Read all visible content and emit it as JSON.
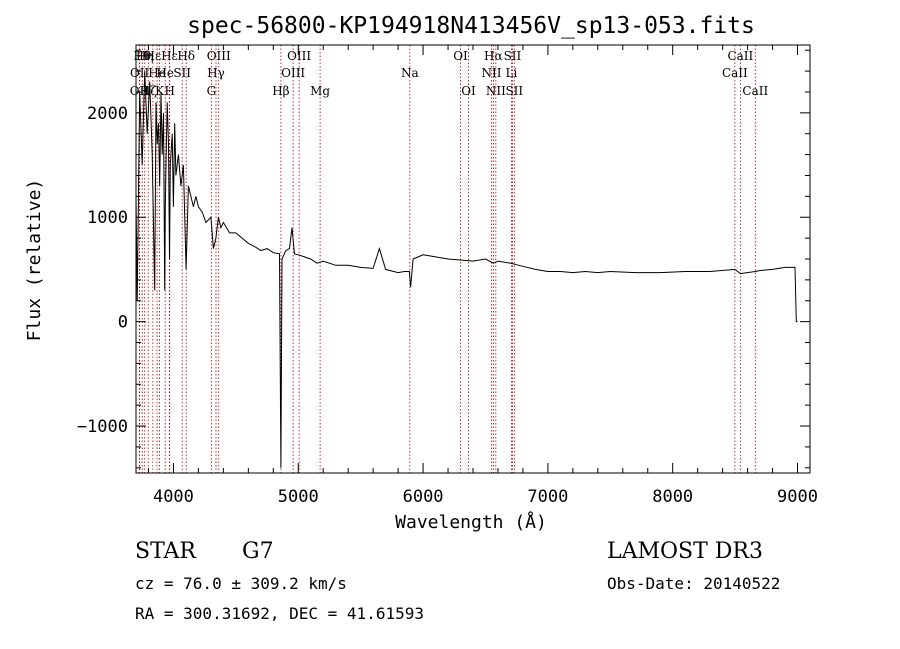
{
  "chart_data": {
    "type": "line",
    "title": "spec-56800-KP194918N413456V_sp13-053.fits",
    "xlabel": "Wavelength (Å)",
    "ylabel": "Flux (relative)",
    "xlim": [
      3700,
      9100
    ],
    "ylim": [
      -1450,
      2650
    ],
    "xticks": [
      4000,
      5000,
      6000,
      7000,
      8000,
      9000
    ],
    "yticks": [
      -1000,
      0,
      1000,
      2000
    ],
    "series": [
      {
        "name": "flux",
        "x": [
          3700,
          3710,
          3730,
          3750,
          3770,
          3790,
          3810,
          3830,
          3850,
          3860,
          3870,
          3880,
          3890,
          3900,
          3910,
          3920,
          3930,
          3935,
          3940,
          3950,
          3960,
          3968,
          3975,
          3990,
          4000,
          4010,
          4020,
          4040,
          4060,
          4080,
          4101,
          4120,
          4140,
          4160,
          4180,
          4200,
          4230,
          4260,
          4300,
          4320,
          4340,
          4360,
          4380,
          4400,
          4450,
          4500,
          4550,
          4600,
          4650,
          4700,
          4750,
          4800,
          4850,
          4861,
          4870,
          4900,
          4930,
          4950,
          4970,
          5000,
          5050,
          5100,
          5150,
          5200,
          5300,
          5400,
          5500,
          5600,
          5650,
          5700,
          5800,
          5850,
          5890,
          5900,
          5920,
          6000,
          6100,
          6200,
          6300,
          6400,
          6500,
          6563,
          6600,
          6700,
          6800,
          6900,
          7000,
          7100,
          7200,
          7300,
          7400,
          7500,
          7700,
          7900,
          8100,
          8300,
          8498,
          8542,
          8662,
          8700,
          8800,
          8900,
          8980,
          8990,
          9000
        ],
        "y": [
          1200,
          200,
          2200,
          1500,
          2400,
          1800,
          2300,
          1600,
          300,
          2100,
          1700,
          1900,
          1300,
          2200,
          1600,
          2000,
          300,
          1100,
          1500,
          2100,
          1700,
          600,
          1500,
          1800,
          1100,
          1900,
          1400,
          1600,
          1300,
          1500,
          500,
          1300,
          1200,
          1100,
          1200,
          1100,
          1050,
          950,
          1000,
          700,
          800,
          1000,
          900,
          950,
          850,
          850,
          800,
          750,
          720,
          680,
          700,
          660,
          650,
          -1400,
          600,
          680,
          700,
          900,
          650,
          640,
          620,
          600,
          560,
          580,
          540,
          540,
          520,
          510,
          700,
          500,
          470,
          480,
          480,
          330,
          600,
          640,
          620,
          600,
          590,
          580,
          600,
          560,
          580,
          560,
          530,
          500,
          480,
          480,
          470,
          480,
          470,
          480,
          470,
          470,
          480,
          480,
          500,
          460,
          480,
          490,
          500,
          520,
          520,
          0,
          0
        ]
      }
    ],
    "lines": [
      {
        "label": "OII",
        "x": 3727,
        "row": 3
      },
      {
        "label": "OII",
        "x": 3729,
        "row": 2
      },
      {
        "label": "Hθ",
        "x": 3750,
        "row": 1
      },
      {
        "label": "Hη",
        "x": 3770,
        "row": 1
      },
      {
        "label": "Hζ",
        "x": 3798,
        "row": 3
      },
      {
        "label": "Hε",
        "x": 3835,
        "row": 1
      },
      {
        "label": "He",
        "x": 3869,
        "row": 2
      },
      {
        "label": "K",
        "x": 3889,
        "row": 3
      },
      {
        "label": "He",
        "x": 3934,
        "row": 2
      },
      {
        "label": "Hε",
        "x": 3968,
        "row": 1
      },
      {
        "label": "SII",
        "x": 4070,
        "row": 2
      },
      {
        "label": "H",
        "x": 3970,
        "row": 3
      },
      {
        "label": "Hδ",
        "x": 4102,
        "row": 1
      },
      {
        "label": "G",
        "x": 4304,
        "row": 3
      },
      {
        "label": "Hγ",
        "x": 4341,
        "row": 2
      },
      {
        "label": "OIII",
        "x": 4363,
        "row": 1
      },
      {
        "label": "Hβ",
        "x": 4861,
        "row": 3
      },
      {
        "label": "OIII",
        "x": 4959,
        "row": 2
      },
      {
        "label": "OIII",
        "x": 5007,
        "row": 1
      },
      {
        "label": "Mg",
        "x": 5175,
        "row": 3
      },
      {
        "label": "Na",
        "x": 5894,
        "row": 2
      },
      {
        "label": "OI",
        "x": 6300,
        "row": 1
      },
      {
        "label": "OI",
        "x": 6364,
        "row": 3
      },
      {
        "label": "NII",
        "x": 6548,
        "row": 2
      },
      {
        "label": "Hα",
        "x": 6563,
        "row": 1
      },
      {
        "label": "NII",
        "x": 6583,
        "row": 3
      },
      {
        "label": "Li",
        "x": 6708,
        "row": 2
      },
      {
        "label": "SII",
        "x": 6716,
        "row": 1
      },
      {
        "label": "SII",
        "x": 6731,
        "row": 3
      },
      {
        "label": "CaII",
        "x": 8498,
        "row": 2
      },
      {
        "label": "CaII",
        "x": 8542,
        "row": 1
      },
      {
        "label": "CaII",
        "x": 8662,
        "row": 3
      }
    ]
  },
  "info": {
    "class_label": "STAR",
    "subclass": "G7",
    "survey": "LAMOST DR3",
    "cz": "cz = 76.0 ± 309.2 km/s",
    "obs_date": "Obs-Date: 20140522",
    "coords": "RA = 300.31692, DEC =  41.61593"
  },
  "colors": {
    "line": "#000000",
    "marker": "#b00000"
  }
}
